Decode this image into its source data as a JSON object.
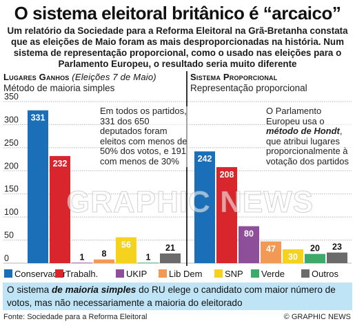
{
  "title": "O sistema eleitoral britânico é “arcaico”",
  "subtitle": "Um relatório da Sociedade para a Reforma Eleitoral na Grã-Bretanha constata que as eleições de Maio foram as mais desproporcionadas na história. Num sistema de representação proporcional, como o usado nas eleições para o Parlamento Europeu, o resultado seria muito diferente",
  "left_panel": {
    "heading": "Lugares Ganhos",
    "heading_note": "(Eleições 7 de Maio)",
    "subheading": "Método de maioria simples",
    "note": "Em todos os partidos, 331 dos 650 deputados foram eleitos com menos de 50% dos votos, e 191 com menos de 30%"
  },
  "right_panel": {
    "heading": "Sistema Proporcional",
    "subheading": "Representação proporcional",
    "note_before": "O Parlamento Europeu usa o ",
    "note_emph": "método de Hondt",
    "note_after": ", que atribui lugares proporcionalmente à votação dos partidos"
  },
  "chart_data": [
    {
      "type": "bar",
      "title": "Lugares Ganhos (Eleições 7 de Maio)",
      "subtitle": "Método de maioria simples",
      "categories": [
        "Conservador",
        "Trabalh.",
        "UKIP",
        "Lib Dem",
        "SNP",
        "Verde",
        "Outros"
      ],
      "values": [
        331,
        232,
        1,
        8,
        56,
        1,
        21
      ],
      "ylim": [
        0,
        350
      ],
      "yticks": [
        0,
        50,
        100,
        150,
        200,
        250,
        300,
        350
      ],
      "grid": true
    },
    {
      "type": "bar",
      "title": "Sistema Proporcional",
      "subtitle": "Representação proporcional",
      "categories": [
        "Conservador",
        "Trabalh.",
        "UKIP",
        "Lib Dem",
        "SNP",
        "Verde",
        "Outros"
      ],
      "values": [
        242,
        208,
        80,
        47,
        30,
        20,
        23
      ],
      "ylim": [
        0,
        350
      ],
      "grid": true
    }
  ],
  "legend": [
    {
      "label": "Conservador",
      "color": "#1a6fb8"
    },
    {
      "label": "Trabalh.",
      "color": "#d9262c"
    },
    {
      "label": "UKIP",
      "color": "#8e4f9a"
    },
    {
      "label": "Lib Dem",
      "color": "#f29a55"
    },
    {
      "label": "SNP",
      "color": "#f5d21e"
    },
    {
      "label": "Verde",
      "color": "#3daa6a"
    },
    {
      "label": "Outros",
      "color": "#6b6b6b"
    }
  ],
  "callout": {
    "before": "O sistema ",
    "emph": "de maioria simples",
    "after": " do RU elege o candidato com maior número de votos, mas não necessariamente a maioria do eleitorado"
  },
  "footer": {
    "source": "Fonte: Sociedade para a Reforma Eleitoral",
    "credit": "© GRAPHIC NEWS"
  },
  "watermark": "GRAPHIC NEWS"
}
